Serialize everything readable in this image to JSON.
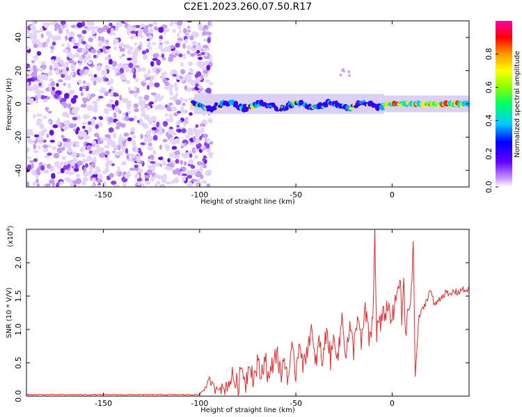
{
  "title": "C2E1.2023.260.07.50.R17",
  "chart_data": [
    {
      "type": "heatmap",
      "description_label": "spectrogram",
      "xlabel": "Height of straight line (km)",
      "ylabel": "Frequency (Hz)",
      "xlim": [
        -190,
        40
      ],
      "ylim": [
        -50,
        50
      ],
      "xticks": [
        -150,
        -100,
        -50,
        0
      ],
      "xtick_labels": [
        "-150",
        "-100",
        "-50",
        "0"
      ],
      "yticks": [
        -40,
        -20,
        0,
        20,
        40
      ],
      "ytick_labels": [
        "-40",
        "-20",
        "0",
        "20",
        "40"
      ],
      "noise_region_km": [
        -190,
        -100
      ],
      "signal_band_hz": [
        -5,
        5
      ],
      "weak_echo_km": [
        -30,
        -20
      ],
      "weak_echo_hz": [
        16,
        21
      ],
      "colorbar": {
        "label": "Normalized spectral amplitude",
        "range": [
          0.0,
          1.0
        ],
        "ticks": [
          0.0,
          0.2,
          0.4,
          0.6,
          0.8
        ],
        "tick_labels": [
          "0.0",
          "0.2",
          "0.4",
          "0.6",
          "0.8"
        ],
        "colors": [
          "#ffffff",
          "#cc99ff",
          "#6600ff",
          "#0000ff",
          "#00ccff",
          "#00ff66",
          "#88ff00",
          "#ffff00",
          "#ff9900",
          "#ff0000",
          "#ff00aa"
        ]
      }
    },
    {
      "type": "line",
      "xlabel": "Height of straight line (km)",
      "ylabel": "SNR (10 * V/V)",
      "y_multiplier_label": "(x10",
      "y_multiplier_exp": "4",
      "y_multiplier_close": ")",
      "xlim": [
        -190,
        40
      ],
      "ylim": [
        0,
        2.5
      ],
      "xticks": [
        -150,
        -100,
        -50,
        0
      ],
      "xtick_labels": [
        "-150",
        "-100",
        "-50",
        "0"
      ],
      "yticks": [
        0.0,
        0.5,
        1.0,
        1.5,
        2.0
      ],
      "ytick_labels": [
        "0.0",
        "0.5",
        "1.0",
        "1.5",
        "2.0"
      ],
      "color": "#e8282a",
      "series": [
        {
          "name": "SNR",
          "x": [
            -190,
            -170,
            -150,
            -130,
            -110,
            -100,
            -97,
            -95,
            -92,
            -90,
            -88,
            -85,
            -83,
            -80,
            -78,
            -76,
            -74,
            -72,
            -70,
            -68,
            -66,
            -64,
            -62,
            -60,
            -58,
            -56,
            -54,
            -52,
            -50,
            -48,
            -46,
            -44,
            -42,
            -40,
            -38,
            -36,
            -34,
            -32,
            -30,
            -28,
            -26,
            -24,
            -22,
            -20,
            -18,
            -16,
            -14,
            -12,
            -10,
            -9,
            -8,
            -7,
            -6,
            -4,
            -2,
            0,
            2,
            4,
            5,
            6,
            7,
            8,
            10,
            11,
            12,
            14,
            16,
            18,
            20,
            22,
            24,
            26,
            28,
            30,
            32,
            34,
            36,
            38,
            40
          ],
          "values": [
            0.02,
            0.02,
            0.02,
            0.02,
            0.03,
            0.04,
            0.12,
            0.25,
            0.1,
            0.18,
            0.08,
            0.2,
            0.3,
            0.15,
            0.45,
            0.2,
            0.55,
            0.25,
            0.48,
            0.3,
            0.62,
            0.2,
            0.5,
            0.7,
            0.3,
            0.55,
            0.28,
            0.65,
            0.35,
            0.9,
            0.4,
            0.75,
            1.0,
            0.45,
            0.8,
            0.5,
            1.05,
            0.55,
            0.9,
            0.6,
            1.2,
            0.65,
            1.0,
            0.7,
            1.25,
            0.75,
            1.3,
            0.85,
            1.1,
            2.45,
            0.95,
            1.15,
            1.05,
            1.25,
            1.35,
            1.15,
            1.4,
            1.8,
            1.1,
            1.75,
            0.8,
            1.3,
            1.5,
            2.35,
            0.3,
            1.2,
            1.3,
            1.45,
            1.6,
            1.35,
            1.45,
            1.5,
            1.55,
            1.5,
            1.58,
            1.55,
            1.6,
            1.58,
            1.62
          ]
        }
      ]
    }
  ]
}
